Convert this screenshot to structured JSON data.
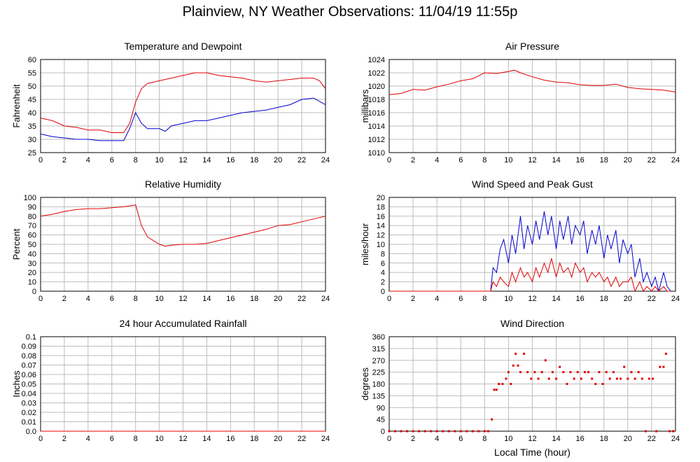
{
  "page_title": "Plainview, NY Weather Observations: 11/04/19 11:55p",
  "x_label": "Local Time (hour)",
  "colors": {
    "red": "#e00000",
    "blue": "#0000d0",
    "grid": "#bdbdbd",
    "axis": "#000000"
  },
  "chart_data": [
    {
      "type": "line",
      "title": "Temperature and Dewpoint",
      "ylabel": "Fahrenheit",
      "xlim": [
        0,
        24
      ],
      "ylim": [
        25,
        60
      ],
      "x_ticks": [
        0,
        2,
        4,
        6,
        8,
        10,
        12,
        14,
        16,
        18,
        20,
        22,
        24
      ],
      "y_ticks": [
        25,
        30,
        35,
        40,
        45,
        50,
        55,
        60
      ],
      "series": [
        {
          "color": "red",
          "x": [
            0,
            1,
            2,
            3,
            4,
            5,
            6,
            7,
            7.5,
            8,
            8.5,
            9,
            10,
            11,
            12,
            13,
            14,
            15,
            16,
            17,
            18,
            19,
            20,
            21,
            22,
            23,
            23.5,
            24
          ],
          "y": [
            38,
            37,
            35,
            34.5,
            33.5,
            33.5,
            32.5,
            32.5,
            36,
            44,
            49,
            51,
            52,
            53,
            54,
            55,
            55,
            54,
            53.5,
            53,
            52,
            51.5,
            52,
            52.5,
            53,
            53,
            52,
            49
          ]
        },
        {
          "color": "blue",
          "x": [
            0,
            1,
            2,
            3,
            4,
            5,
            6,
            7,
            7.5,
            8,
            8.5,
            9,
            10,
            10.5,
            11,
            12,
            13,
            14,
            15,
            16,
            17,
            18,
            19,
            20,
            21,
            22,
            23,
            24
          ],
          "y": [
            32,
            31,
            30.5,
            30,
            30,
            29.5,
            29.5,
            29.5,
            34,
            40,
            36,
            34,
            34,
            33,
            35,
            36,
            37,
            37,
            38,
            39,
            40,
            40.5,
            41,
            42,
            43,
            45,
            45.5,
            43
          ]
        }
      ]
    },
    {
      "type": "line",
      "title": "Air Pressure",
      "ylabel": "millibars",
      "xlim": [
        0,
        24
      ],
      "ylim": [
        1010,
        1024
      ],
      "x_ticks": [
        0,
        2,
        4,
        6,
        8,
        10,
        12,
        14,
        16,
        18,
        20,
        22,
        24
      ],
      "y_ticks": [
        1010,
        1012,
        1014,
        1016,
        1018,
        1020,
        1022,
        1024
      ],
      "series": [
        {
          "color": "red",
          "x": [
            0,
            1,
            2,
            3,
            4,
            5,
            6,
            7,
            8,
            9,
            10,
            10.5,
            11,
            12,
            13,
            14,
            15,
            16,
            17,
            18,
            19,
            20,
            21,
            22,
            23,
            24
          ],
          "y": [
            1018.7,
            1018.9,
            1019.5,
            1019.4,
            1019.9,
            1020.3,
            1020.8,
            1021.1,
            1022.0,
            1021.9,
            1022.2,
            1022.4,
            1022.0,
            1021.4,
            1020.9,
            1020.6,
            1020.5,
            1020.2,
            1020.1,
            1020.1,
            1020.3,
            1019.8,
            1019.6,
            1019.5,
            1019.4,
            1019.1
          ]
        }
      ]
    },
    {
      "type": "line",
      "title": "Relative Humidity",
      "ylabel": "Percent",
      "xlim": [
        0,
        24
      ],
      "ylim": [
        0,
        100
      ],
      "x_ticks": [
        0,
        2,
        4,
        6,
        8,
        10,
        12,
        14,
        16,
        18,
        20,
        22,
        24
      ],
      "y_ticks": [
        0,
        10,
        20,
        30,
        40,
        50,
        60,
        70,
        80,
        90,
        100
      ],
      "series": [
        {
          "color": "red",
          "x": [
            0,
            1,
            2,
            3,
            4,
            5,
            6,
            7,
            7.5,
            8,
            8.5,
            9,
            10,
            10.5,
            11,
            12,
            13,
            14,
            15,
            16,
            17,
            18,
            19,
            20,
            21,
            22,
            23,
            24
          ],
          "y": [
            80,
            82,
            85,
            87,
            88,
            88,
            89,
            90,
            91,
            92,
            70,
            58,
            50,
            48,
            49,
            50,
            50,
            51,
            54,
            57,
            60,
            63,
            66,
            70,
            71,
            74,
            77,
            80
          ]
        }
      ]
    },
    {
      "type": "line",
      "title": "Wind Speed and Peak Gust",
      "ylabel": "miles/hour",
      "xlim": [
        0,
        24
      ],
      "ylim": [
        0,
        20
      ],
      "x_ticks": [
        0,
        2,
        4,
        6,
        8,
        10,
        12,
        14,
        16,
        18,
        20,
        22,
        24
      ],
      "y_ticks": [
        0,
        2,
        4,
        6,
        8,
        10,
        12,
        14,
        16,
        18,
        20
      ],
      "series": [
        {
          "color": "blue",
          "x": [
            0,
            8.5,
            8.7,
            9,
            9.3,
            9.6,
            10,
            10.3,
            10.6,
            11,
            11.3,
            11.6,
            12,
            12.3,
            12.6,
            13,
            13.3,
            13.6,
            14,
            14.3,
            14.6,
            15,
            15.3,
            15.6,
            16,
            16.3,
            16.6,
            17,
            17.3,
            17.6,
            18,
            18.3,
            18.6,
            19,
            19.3,
            19.6,
            20,
            20.3,
            20.6,
            21,
            21.3,
            21.6,
            22,
            22.3,
            22.6,
            23,
            23.3,
            23.6
          ],
          "y": [
            0,
            0,
            5,
            4,
            9,
            11,
            6,
            12,
            8,
            16,
            9,
            14,
            10,
            15,
            11,
            17,
            12,
            16,
            9,
            15,
            11,
            16,
            10,
            14,
            12,
            15,
            8,
            13,
            10,
            14,
            7,
            12,
            9,
            13,
            6,
            11,
            8,
            10,
            3,
            7,
            2,
            4,
            1,
            3,
            0,
            4,
            1,
            0
          ]
        },
        {
          "color": "red",
          "x": [
            0,
            8.5,
            8.7,
            9,
            9.3,
            9.6,
            10,
            10.3,
            10.6,
            11,
            11.3,
            11.6,
            12,
            12.3,
            12.6,
            13,
            13.3,
            13.6,
            14,
            14.3,
            14.6,
            15,
            15.3,
            15.6,
            16,
            16.3,
            16.6,
            17,
            17.3,
            17.6,
            18,
            18.3,
            18.6,
            19,
            19.3,
            19.6,
            20,
            20.3,
            20.6,
            21,
            21.3,
            21.6,
            22,
            22.3,
            22.6,
            23,
            23.3,
            23.6
          ],
          "y": [
            0,
            0,
            2,
            1,
            3,
            2,
            1,
            4,
            2,
            5,
            3,
            4,
            2,
            5,
            3,
            6,
            4,
            7,
            3,
            6,
            4,
            5,
            3,
            6,
            4,
            5,
            2,
            4,
            3,
            4,
            2,
            3,
            1,
            3,
            1,
            2,
            2,
            3,
            0,
            2,
            0,
            1,
            0,
            1,
            0,
            1,
            0,
            0
          ]
        }
      ]
    },
    {
      "type": "line",
      "title": "24 hour Accumulated Rainfall",
      "ylabel": "Inches",
      "xlim": [
        0,
        24
      ],
      "ylim": [
        0,
        0.1
      ],
      "x_ticks": [
        0,
        2,
        4,
        6,
        8,
        10,
        12,
        14,
        16,
        18,
        20,
        22,
        24
      ],
      "y_ticks": [
        0.0,
        0.01,
        0.02,
        0.03,
        0.04,
        0.05,
        0.06,
        0.07,
        0.08,
        0.09,
        0.1
      ],
      "y_tick_labels": [
        "0.0",
        "0.01",
        "0.02",
        "0.03",
        "0.04",
        "0.05",
        "0.06",
        "0.07",
        "0.08",
        "0.09",
        "0.1"
      ],
      "series": [
        {
          "color": "red",
          "x": [
            0,
            24
          ],
          "y": [
            0,
            0
          ]
        }
      ]
    },
    {
      "type": "scatter",
      "title": "Wind Direction",
      "ylabel": "degrees",
      "xlim": [
        0,
        24
      ],
      "ylim": [
        0,
        360
      ],
      "x_ticks": [
        0,
        2,
        4,
        6,
        8,
        10,
        12,
        14,
        16,
        18,
        20,
        22,
        24
      ],
      "y_ticks": [
        0,
        45,
        90,
        135,
        180,
        225,
        270,
        315,
        360
      ],
      "series": [
        {
          "color": "red",
          "x": [
            0,
            0.5,
            1,
            1.5,
            2,
            2.5,
            3,
            3.5,
            4,
            4.5,
            5,
            5.5,
            6,
            6.5,
            7,
            7.5,
            8,
            8.3,
            8.6,
            8.8,
            9,
            9.2,
            9.5,
            9.8,
            10,
            10.2,
            10.4,
            10.6,
            10.8,
            11,
            11.3,
            11.6,
            11.9,
            12.2,
            12.5,
            12.8,
            13.1,
            13.4,
            13.7,
            14,
            14.3,
            14.6,
            14.9,
            15.2,
            15.5,
            15.8,
            16.1,
            16.4,
            16.7,
            17,
            17.3,
            17.6,
            17.9,
            18.2,
            18.5,
            18.8,
            19.1,
            19.4,
            19.7,
            20,
            20.3,
            20.6,
            20.9,
            21.2,
            21.5,
            21.8,
            22.1,
            22.4,
            22.7,
            23,
            23.2,
            23.5,
            23.8
          ],
          "y": [
            0,
            0,
            0,
            0,
            0,
            0,
            0,
            0,
            0,
            0,
            0,
            0,
            0,
            0,
            0,
            0,
            0,
            0,
            45,
            158,
            158,
            180,
            180,
            200,
            225,
            180,
            250,
            295,
            250,
            225,
            295,
            225,
            200,
            225,
            200,
            225,
            270,
            200,
            225,
            200,
            245,
            225,
            180,
            225,
            200,
            225,
            200,
            225,
            225,
            200,
            180,
            225,
            180,
            225,
            200,
            225,
            200,
            200,
            245,
            200,
            225,
            200,
            225,
            200,
            0,
            200,
            200,
            0,
            245,
            245,
            295,
            0,
            0
          ]
        }
      ]
    }
  ]
}
